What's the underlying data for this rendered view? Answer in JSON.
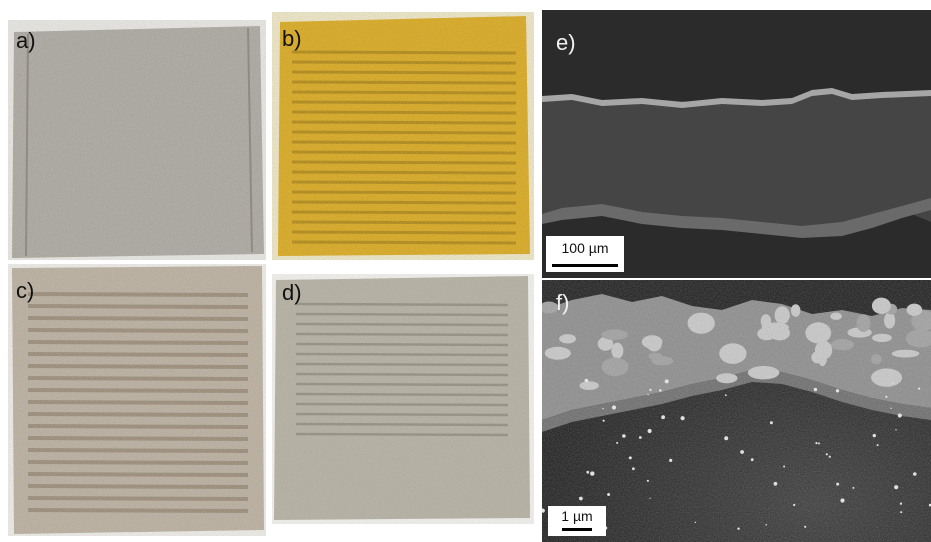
{
  "figure": {
    "panels": [
      {
        "id": "a",
        "label": "a)",
        "colors": [
          "#9a968f",
          "#c2bfb8",
          "#7d776e"
        ]
      },
      {
        "id": "b",
        "label": "b)",
        "colors": [
          "#d9aa2c",
          "#f4d37a",
          "#8a6a18"
        ]
      },
      {
        "id": "c",
        "label": "c)",
        "colors": [
          "#b9ad9c",
          "#d6cfc2",
          "#7e6a55"
        ]
      },
      {
        "id": "d",
        "label": "d)",
        "colors": [
          "#b2ae9f",
          "#d3cfc2",
          "#6e6a5c"
        ]
      },
      {
        "id": "e",
        "label": "e)",
        "scalebar": "100 µm"
      },
      {
        "id": "f",
        "label": "f)",
        "scalebar": "1 µm"
      }
    ]
  }
}
